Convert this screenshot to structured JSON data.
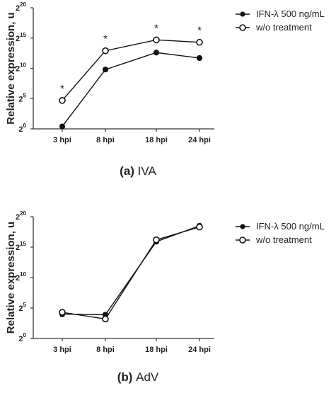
{
  "chart_data": [
    {
      "type": "line",
      "caption_label": "(a)",
      "caption_text": "IVA",
      "ylabel": "Relative expression, u",
      "ytick_base": "2",
      "yticks": [
        0,
        5,
        10,
        15,
        20
      ],
      "ylim_exp": [
        0,
        20
      ],
      "categories": [
        "3 hpi",
        "8 hpi",
        "18 hpi",
        "24 hpi"
      ],
      "series": [
        {
          "name": "IFN-λ 500 ng/mL",
          "marker": "filled",
          "values": [
            0.4,
            9.8,
            12.6,
            11.7
          ],
          "errors": [
            0.3,
            0.2,
            0.2,
            0.2
          ]
        },
        {
          "name": "w/o treatment",
          "marker": "open",
          "values": [
            4.7,
            12.9,
            14.7,
            14.3
          ],
          "errors": [
            0.3,
            0.3,
            0.3,
            0.3
          ]
        }
      ],
      "annotations": [
        "*",
        "*",
        "*",
        "*"
      ],
      "legend_position": "top-right"
    },
    {
      "type": "line",
      "caption_label": "(b)",
      "caption_text": "AdV",
      "ylabel": "Relative expression, u",
      "ytick_base": "2",
      "yticks": [
        0,
        5,
        10,
        15,
        20
      ],
      "ylim_exp": [
        0,
        20
      ],
      "categories": [
        "3 hpi",
        "8 hpi",
        "18 hpi",
        "24 hpi"
      ],
      "series": [
        {
          "name": "IFN-λ 500 ng/mL",
          "marker": "filled",
          "values": [
            4.0,
            3.9,
            15.9,
            18.5
          ],
          "errors": [
            0.4,
            0.3,
            0.3,
            0.3
          ]
        },
        {
          "name": "w/o treatment",
          "marker": "open",
          "values": [
            4.3,
            3.2,
            16.2,
            18.3
          ],
          "errors": [
            0.4,
            0.3,
            0.3,
            0.3
          ]
        }
      ],
      "annotations": [],
      "legend_position": "top-right"
    }
  ]
}
